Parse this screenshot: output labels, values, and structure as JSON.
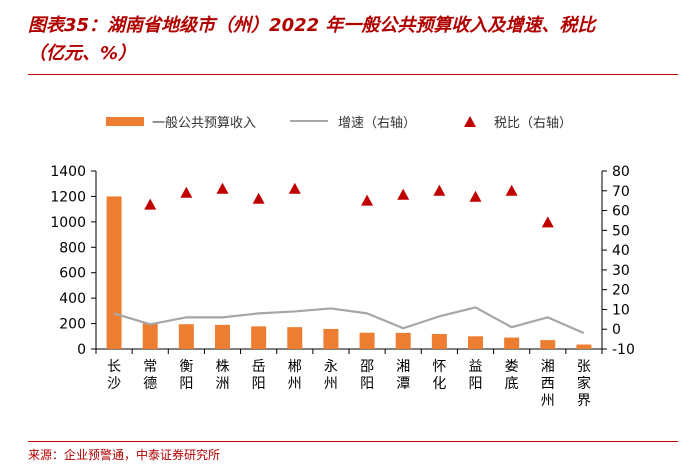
{
  "title_line1": "图表35：湖南省地级市（州）2022 年一般公共预算收入及增速、税比",
  "title_line2": "（亿元、%）",
  "source": "来源：企业预警通，中泰证券研究所",
  "colors": {
    "bar": "#ed7d31",
    "line": "#a6a6a6",
    "marker": "#c00000",
    "title": "#b00000"
  },
  "chart_data": {
    "type": "bar",
    "categories": [
      "长沙",
      "常德",
      "衡阳",
      "株洲",
      "岳阳",
      "郴州",
      "永州",
      "邵阳",
      "湘潭",
      "怀化",
      "益阳",
      "娄底",
      "湘西州",
      "张家界"
    ],
    "series": [
      {
        "name": "一般公共预算收入",
        "type": "bar",
        "axis": "left",
        "values": [
          1200,
          200,
          195,
          190,
          178,
          172,
          158,
          128,
          127,
          118,
          100,
          90,
          70,
          35
        ]
      },
      {
        "name": "增速（右轴）",
        "type": "line",
        "axis": "right",
        "values": [
          8,
          2.5,
          6,
          6,
          8,
          9,
          10.5,
          8,
          0.5,
          6.5,
          11,
          1,
          6,
          -2
        ]
      },
      {
        "name": "税比（右轴）",
        "type": "scatter",
        "axis": "right",
        "values": [
          null,
          63,
          69,
          71,
          66,
          71,
          null,
          65,
          68,
          70,
          67,
          70,
          54,
          null
        ]
      }
    ],
    "y_left": {
      "range": [
        0,
        1400
      ],
      "ticks": [
        "0",
        "200",
        "400",
        "600",
        "800",
        "1000",
        "1200",
        "1400"
      ]
    },
    "y_right": {
      "range": [
        -10,
        80
      ],
      "ticks": [
        "-10",
        "0",
        "10",
        "20",
        "30",
        "40",
        "50",
        "60",
        "70",
        "80"
      ]
    },
    "legend_position": "top"
  }
}
